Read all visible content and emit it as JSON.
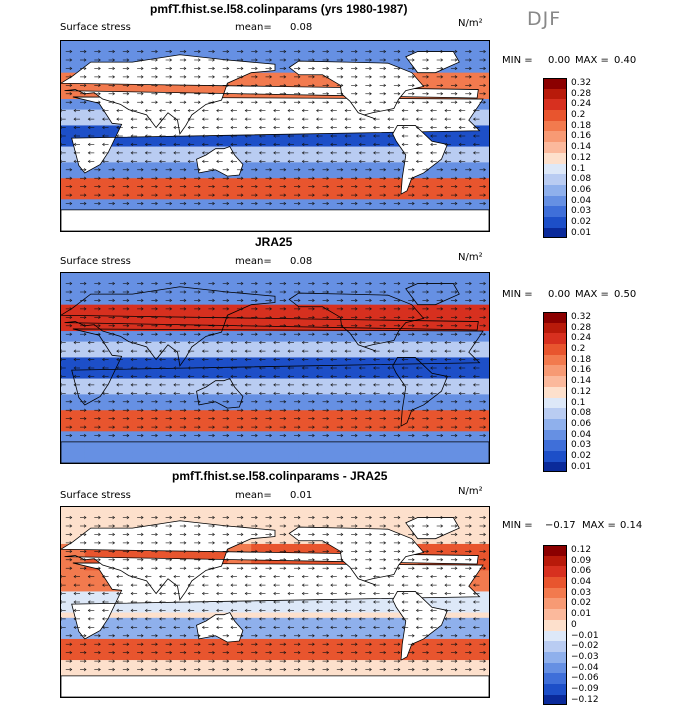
{
  "season": "DJF",
  "panels": [
    {
      "id": "model",
      "title": "pmfT.fhist.se.l58.colinparams (yrs 1980-1987)",
      "variable": "Surface stress",
      "mean_label": "mean=",
      "mean_value": "0.08",
      "units": "N/m²",
      "min_label": "MIN =",
      "min_value": "0.00",
      "max_label": "MAX =",
      "max_value": "0.40",
      "colorbar": [
        "0.32",
        "0.28",
        "0.24",
        "0.2",
        "0.18",
        "0.16",
        "0.14",
        "0.12",
        "0.1",
        "0.08",
        "0.06",
        "0.04",
        "0.03",
        "0.02",
        "0.01"
      ]
    },
    {
      "id": "obs",
      "title": "JRA25",
      "variable": "Surface stress",
      "mean_label": "mean=",
      "mean_value": "0.08",
      "units": "N/m²",
      "min_label": "MIN =",
      "min_value": "0.00",
      "max_label": "MAX =",
      "max_value": "0.50",
      "colorbar": [
        "0.32",
        "0.28",
        "0.24",
        "0.2",
        "0.18",
        "0.16",
        "0.14",
        "0.12",
        "0.1",
        "0.08",
        "0.06",
        "0.04",
        "0.03",
        "0.02",
        "0.01"
      ]
    },
    {
      "id": "diff",
      "title": "pmfT.fhist.se.l58.colinparams - JRA25",
      "variable": "Surface stress",
      "mean_label": "mean=",
      "mean_value": "0.01",
      "units": "N/m²",
      "min_label": "MIN =",
      "min_value": "−0.17",
      "max_label": "MAX =",
      "max_value": "0.14",
      "colorbar": [
        "0.12",
        "0.09",
        "0.06",
        "0.04",
        "0.03",
        "0.02",
        "0.01",
        "0",
        "−0.01",
        "−0.02",
        "−0.03",
        "−0.04",
        "−0.06",
        "−0.09",
        "−0.12"
      ]
    }
  ],
  "colors": {
    "scale": [
      "#8b0000",
      "#b81a0a",
      "#d7301f",
      "#e8552e",
      "#f27a4e",
      "#f79a74",
      "#fbb99c",
      "#fde0cc",
      "#dde8f8",
      "#b9ccf2",
      "#8fb0ec",
      "#6690e3",
      "#3f6fd9",
      "#1d4fc8",
      "#0a2a9a"
    ],
    "land": "#ffffff",
    "coast": "#000000",
    "arrows": "#111111"
  }
}
